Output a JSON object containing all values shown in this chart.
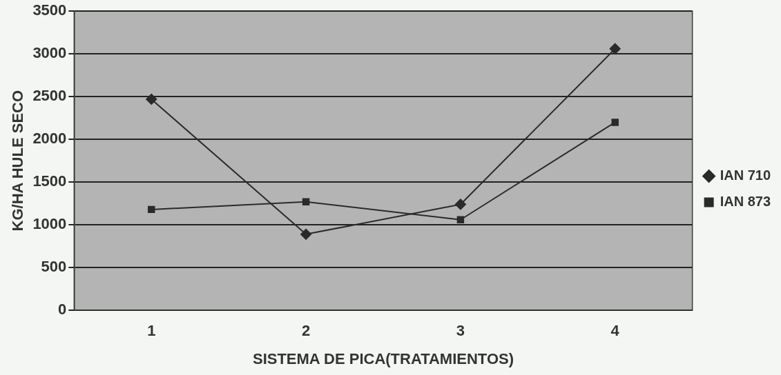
{
  "chart_data": {
    "type": "line",
    "xlabel": "SISTEMA DE PICA(TRATAMIENTOS)",
    "ylabel": "KG/HA HULE SECO",
    "categories": [
      "1",
      "2",
      "3",
      "4"
    ],
    "series": [
      {
        "name": "IAN 710",
        "color": "#2a2a2a",
        "marker": "diamond",
        "values": [
          2470,
          890,
          1240,
          3060
        ]
      },
      {
        "name": "IAN 873",
        "color": "#2a2a2a",
        "marker": "square",
        "values": [
          1180,
          1270,
          1060,
          2200
        ]
      }
    ],
    "ylim": [
      0,
      3500
    ],
    "yticks": [
      0,
      500,
      1000,
      1500,
      2000,
      2500,
      3000,
      3500
    ],
    "grid": "y",
    "legend": "right",
    "line_style": "solid"
  }
}
